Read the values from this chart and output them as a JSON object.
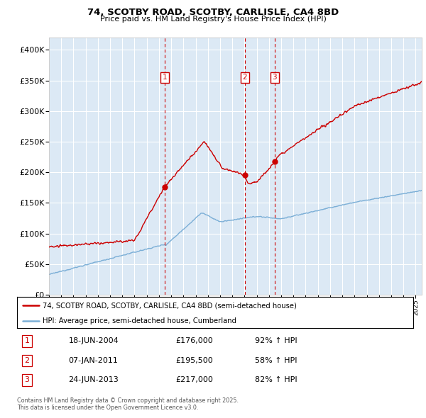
{
  "title": "74, SCOTBY ROAD, SCOTBY, CARLISLE, CA4 8BD",
  "subtitle": "Price paid vs. HM Land Registry's House Price Index (HPI)",
  "ylim": [
    0,
    420000
  ],
  "yticks": [
    0,
    50000,
    100000,
    150000,
    200000,
    250000,
    300000,
    350000,
    400000
  ],
  "ytick_labels": [
    "£0",
    "£50K",
    "£100K",
    "£150K",
    "£200K",
    "£250K",
    "£300K",
    "£350K",
    "£400K"
  ],
  "plot_bg_color": "#dce9f5",
  "grid_color": "#ffffff",
  "red_line_color": "#cc0000",
  "blue_line_color": "#7aaed6",
  "sale_dates": [
    2004.46,
    2011.02,
    2013.47
  ],
  "sale_prices": [
    176000,
    195500,
    217000
  ],
  "sale_labels": [
    "1",
    "2",
    "3"
  ],
  "legend_red": "74, SCOTBY ROAD, SCOTBY, CARLISLE, CA4 8BD (semi-detached house)",
  "legend_blue": "HPI: Average price, semi-detached house, Cumberland",
  "table_data": [
    [
      "1",
      "18-JUN-2004",
      "£176,000",
      "92% ↑ HPI"
    ],
    [
      "2",
      "07-JAN-2011",
      "£195,500",
      "58% ↑ HPI"
    ],
    [
      "3",
      "24-JUN-2013",
      "£217,000",
      "82% ↑ HPI"
    ]
  ],
  "footer": "Contains HM Land Registry data © Crown copyright and database right 2025.\nThis data is licensed under the Open Government Licence v3.0.",
  "xmin": 1995.0,
  "xmax": 2025.5
}
